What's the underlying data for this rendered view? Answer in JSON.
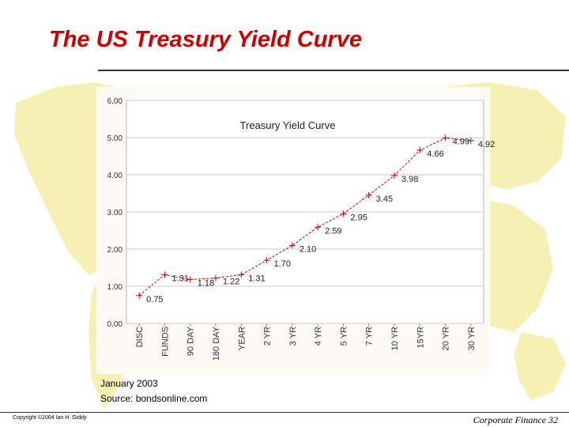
{
  "slide": {
    "title": "The US Treasury Yield Curve",
    "source_line1": "January 2003",
    "source_line2": "Source: bondsonline.com",
    "copyright": "Copyright ©2004 Ian H. Giddy",
    "footer": "Corporate Finance 32"
  },
  "colors": {
    "title": "#cc0000",
    "series": "#cc0000",
    "map": "#f7f0b4",
    "plot_area": "#ffffff",
    "chart_bg": "#fbfbf3"
  },
  "chart_data": {
    "type": "line",
    "title": "Treasury Yield Curve",
    "categories": [
      "DISC",
      "FUNDS",
      "90 DAY",
      "180 DAY",
      "YEAR",
      "2 YR",
      "3 YR",
      "4 YR",
      "5 YR",
      "7 YR",
      "10 YR",
      "15YR",
      "20 YR",
      "30 YR"
    ],
    "series": [
      {
        "values": [
          0.75,
          1.31,
          1.18,
          1.22,
          1.31,
          1.7,
          2.1,
          2.59,
          2.95,
          3.45,
          3.98,
          4.66,
          4.99,
          4.92
        ],
        "labels": [
          "0.75",
          "1.31",
          "1.18",
          "1.22",
          "1.31",
          "1.70",
          "2.10",
          "2.59",
          "2.95",
          "3.45",
          "3.98",
          "4.66",
          "4.99",
          "4.92"
        ]
      }
    ],
    "ylim": [
      0,
      6
    ],
    "yticks": [
      0,
      1,
      2,
      3,
      4,
      5,
      6
    ],
    "ytick_labels": [
      "0.00",
      "1.00",
      "2.00",
      "3.00",
      "4.00",
      "5.00",
      "6.00"
    ],
    "grid": "horizontal",
    "legend": "none",
    "marker": "plus",
    "line_style": "dashed"
  }
}
